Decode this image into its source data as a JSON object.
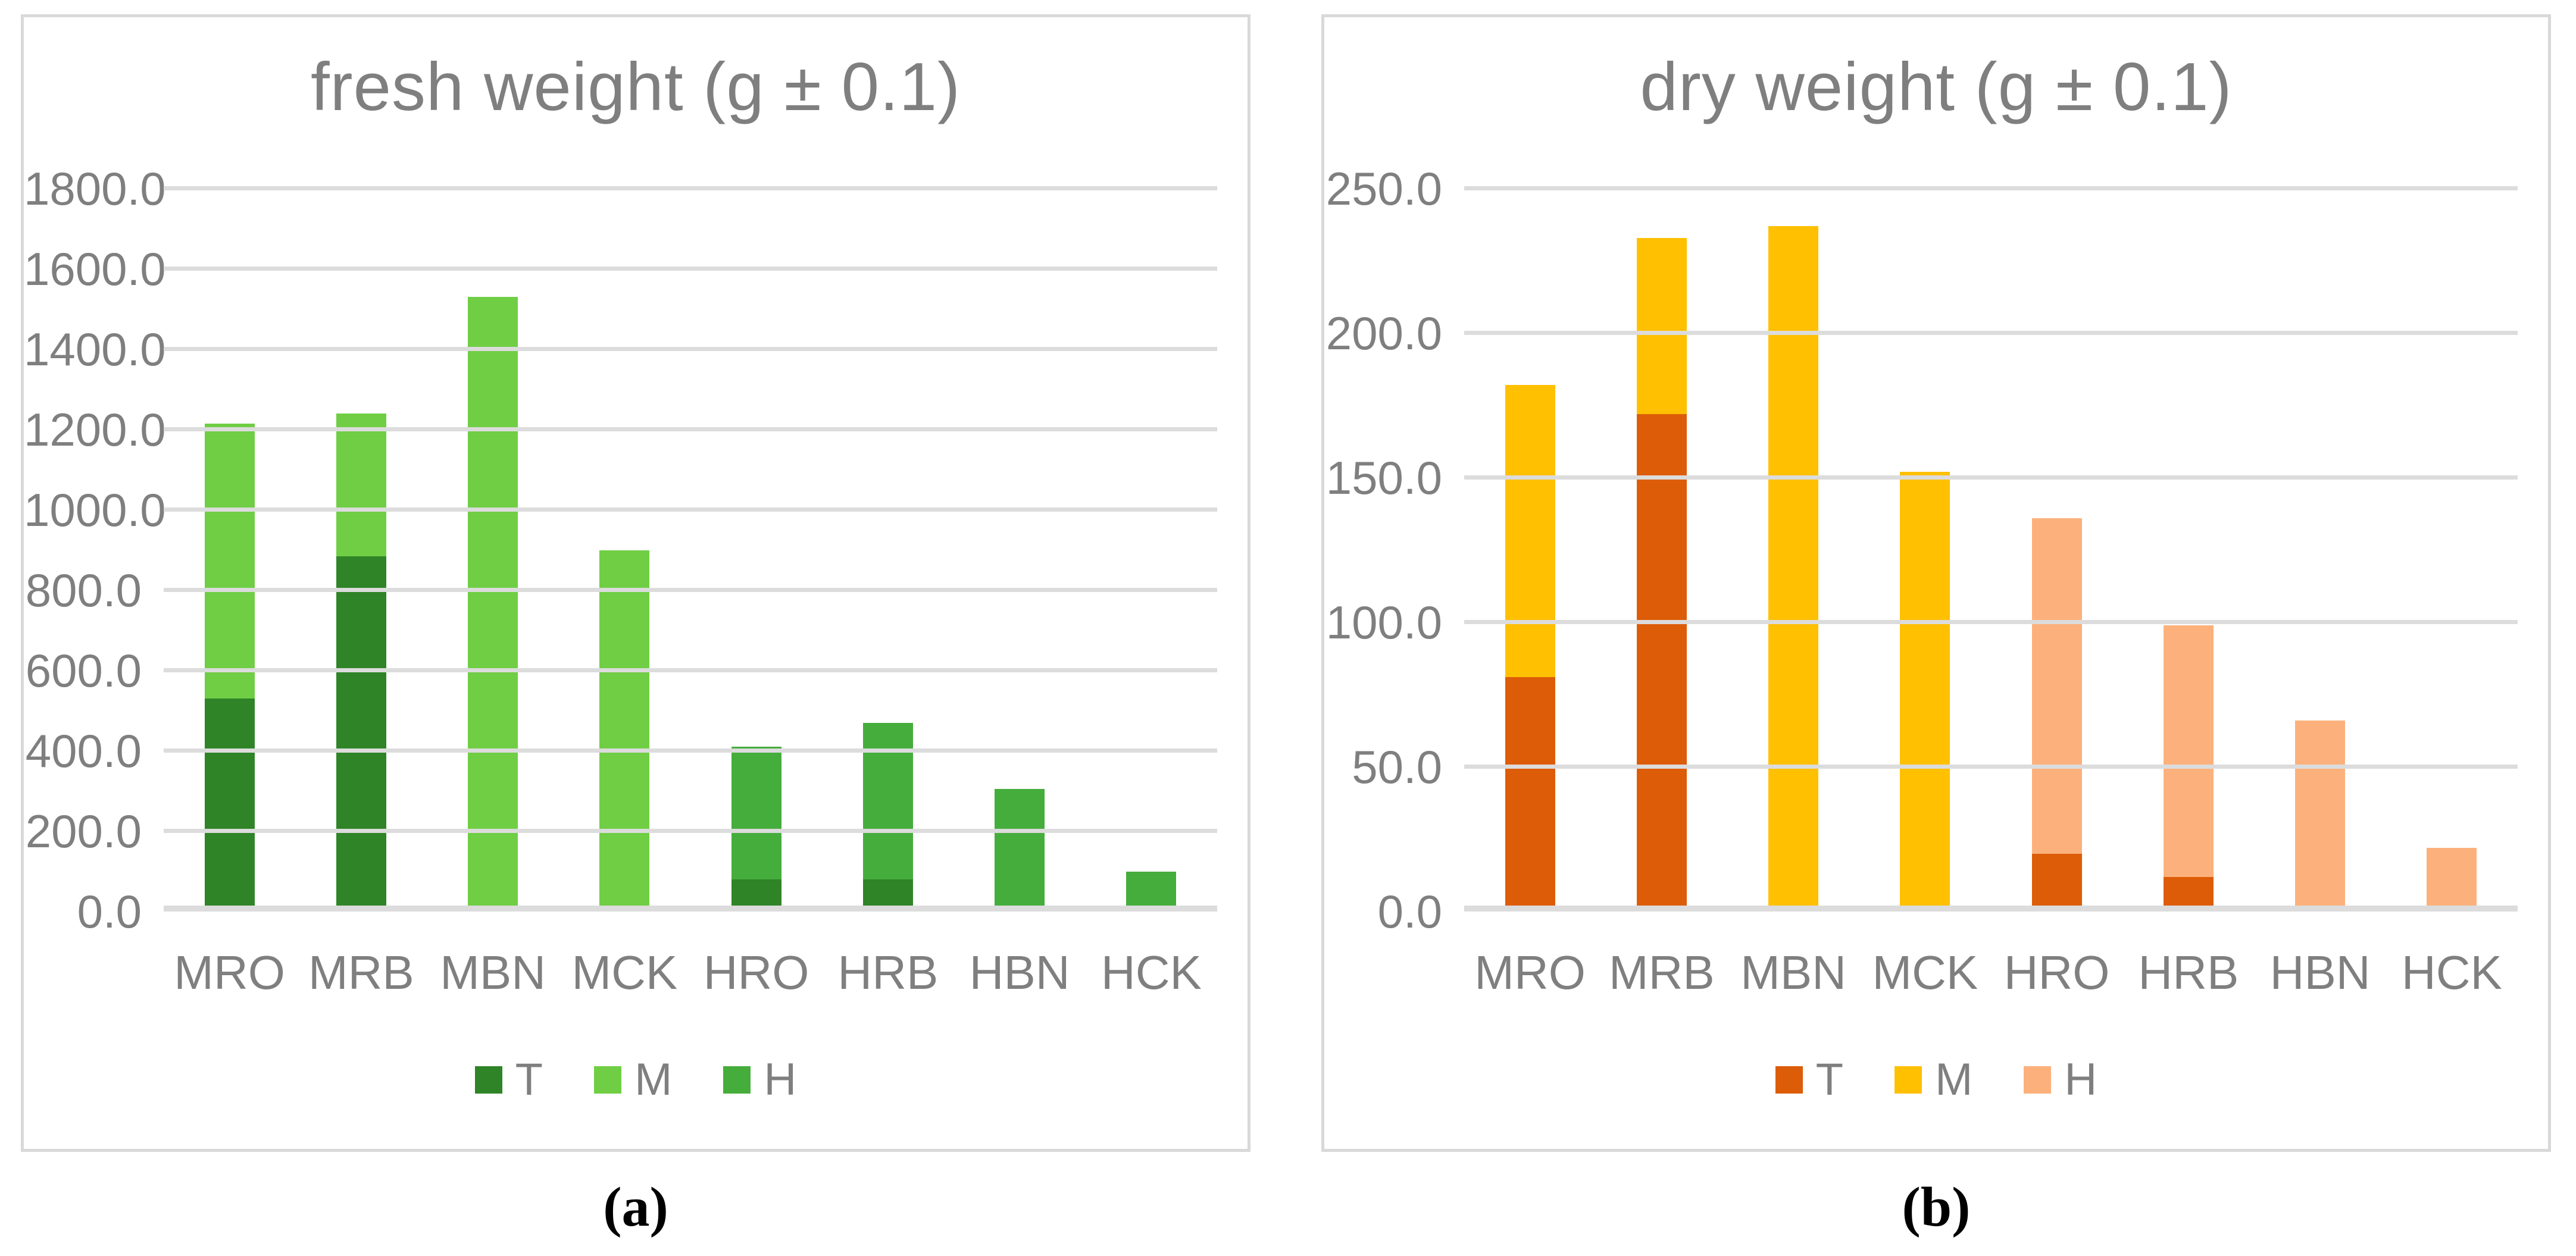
{
  "styles": {
    "panel_border_color": "#d9d9d9",
    "gridline_color": "#dcdcdc",
    "text_color": "#7f7f7f",
    "background_color": "#ffffff"
  },
  "chart_data": [
    {
      "type": "bar",
      "stacked": true,
      "title": "fresh weight (g ± 0.1)",
      "caption": "(a)",
      "xlabel": "",
      "ylabel": "",
      "categories": [
        "MRO",
        "MRB",
        "MBN",
        "MCK",
        "HRO",
        "HRB",
        "HBN",
        "HCK"
      ],
      "series": [
        {
          "name": "T",
          "color": "#2f8427",
          "values": [
            530,
            885,
            0,
            0,
            80,
            80,
            0,
            0
          ]
        },
        {
          "name": "M",
          "color": "#6fce44",
          "values": [
            685,
            355,
            1530,
            900,
            0,
            0,
            0,
            0
          ]
        },
        {
          "name": "H",
          "color": "#45ad3c",
          "values": [
            0,
            0,
            0,
            0,
            330,
            390,
            305,
            100
          ]
        }
      ],
      "totals": [
        1215,
        1240,
        1530,
        900,
        410,
        470,
        305,
        100
      ],
      "ylim": [
        0,
        1800
      ],
      "ytick_step": 200,
      "ytick_labels": [
        "1800.0",
        "1600.0",
        "1400.0",
        "1200.0",
        "1000.0",
        "800.0",
        "600.0",
        "400.0",
        "200.0",
        "0.0"
      ],
      "grid": true,
      "legend_position": "bottom"
    },
    {
      "type": "bar",
      "stacked": true,
      "title": "dry weight (g ± 0.1)",
      "caption": "(b)",
      "xlabel": "",
      "ylabel": "",
      "categories": [
        "MRO",
        "MRB",
        "MBN",
        "MCK",
        "HRO",
        "HRB",
        "HBN",
        "HCK"
      ],
      "series": [
        {
          "name": "T",
          "color": "#dd5c08",
          "values": [
            81,
            172,
            0,
            0,
            20,
            12,
            0,
            0
          ]
        },
        {
          "name": "M",
          "color": "#ffc002",
          "values": [
            101,
            61,
            237,
            152,
            0,
            0,
            0,
            0
          ]
        },
        {
          "name": "H",
          "color": "#fcb17c",
          "values": [
            0,
            0,
            0,
            0,
            116,
            87,
            66,
            22
          ]
        }
      ],
      "totals": [
        182,
        233,
        237,
        152,
        136,
        99,
        66,
        22
      ],
      "ylim": [
        0,
        250
      ],
      "ytick_step": 50,
      "ytick_labels": [
        "250.0",
        "200.0",
        "150.0",
        "100.0",
        "50.0",
        "0.0"
      ],
      "grid": true,
      "legend_position": "bottom"
    }
  ]
}
